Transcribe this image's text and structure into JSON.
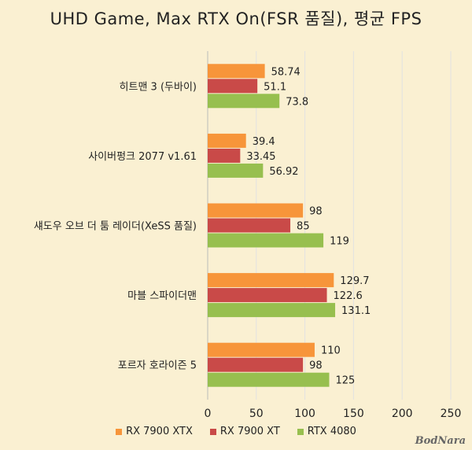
{
  "chart_data": {
    "type": "bar",
    "orientation": "horizontal",
    "title": "UHD Game, Max RTX On(FSR 품질), 평균 FPS",
    "categories": [
      "히트맨 3 (두바이)",
      "사이버펑크 2077 v1.61",
      "섀도우 오브 더 툼 레이더(XeSS 품질)",
      "마블 스파이더맨",
      "포르자 호라이즌 5"
    ],
    "series": [
      {
        "name": "RX 7900 XTX",
        "color": "#f7953a",
        "values": [
          58.74,
          39.4,
          98,
          129.7,
          110
        ]
      },
      {
        "name": "RX 7900 XT",
        "color": "#c94a48",
        "values": [
          51.1,
          33.45,
          85,
          122.6,
          98
        ]
      },
      {
        "name": "RTX 4080",
        "color": "#97bf4f",
        "values": [
          73.8,
          56.92,
          119,
          131.1,
          125
        ]
      }
    ],
    "value_labels": [
      [
        "58.74",
        "39.4",
        "98",
        "129.7",
        "110"
      ],
      [
        "51.1",
        "33.45",
        "85",
        "122.6",
        "98"
      ],
      [
        "73.8",
        "56.92",
        "119",
        "131.1",
        "125"
      ]
    ],
    "xlim": [
      0,
      250
    ],
    "xticks": [
      "0",
      "50",
      "100",
      "150",
      "200",
      "250"
    ],
    "xtick_values": [
      0,
      50,
      100,
      150,
      200,
      250
    ],
    "grid": "vertical",
    "legend": "bottom"
  },
  "watermark": "BodNara"
}
